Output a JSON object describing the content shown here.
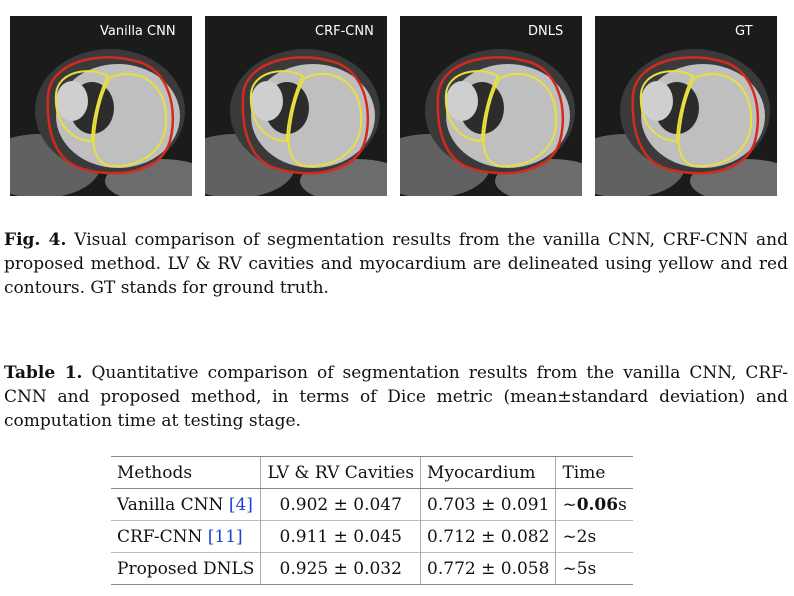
{
  "figure": {
    "panels": [
      {
        "label": "Vanilla CNN"
      },
      {
        "label": "CRF-CNN"
      },
      {
        "label": "DNLS"
      },
      {
        "label": "GT"
      }
    ],
    "colors": {
      "rv_lv_contour": "#e8e03c",
      "myocardium_contour": "#d42a1e"
    },
    "caption_label": "Fig. 4.",
    "caption_text": " Visual comparison of segmentation results from the vanilla CNN, CRF-CNN and proposed method. LV & RV cavities and myocardium are delineated using yellow and red contours. GT stands for ground truth."
  },
  "table": {
    "caption_label": "Table 1.",
    "caption_text": " Quantitative comparison of segmentation results from the vanilla CNN, CRF-CNN and proposed method, in terms of Dice metric (mean±standard deviation) and computation time at testing stage.",
    "headers": [
      "Methods",
      "LV & RV Cavities",
      "Myocardium",
      "Time"
    ],
    "rows": [
      {
        "method": "Vanilla CNN ",
        "ref": "[4]",
        "cavities": "0.902 ± 0.047",
        "myo": "0.703 ± 0.091",
        "time_prefix": "~",
        "time_value": "0.06",
        "time_suffix": "s"
      },
      {
        "method": "CRF-CNN ",
        "ref": "[11]",
        "cavities": "0.911 ± 0.045",
        "myo": "0.712 ± 0.082",
        "time": "~2s"
      },
      {
        "method": "Proposed DNLS",
        "cavities": "0.925 ± 0.032",
        "myo": "0.772 ± 0.058",
        "time": "~5s"
      }
    ]
  }
}
